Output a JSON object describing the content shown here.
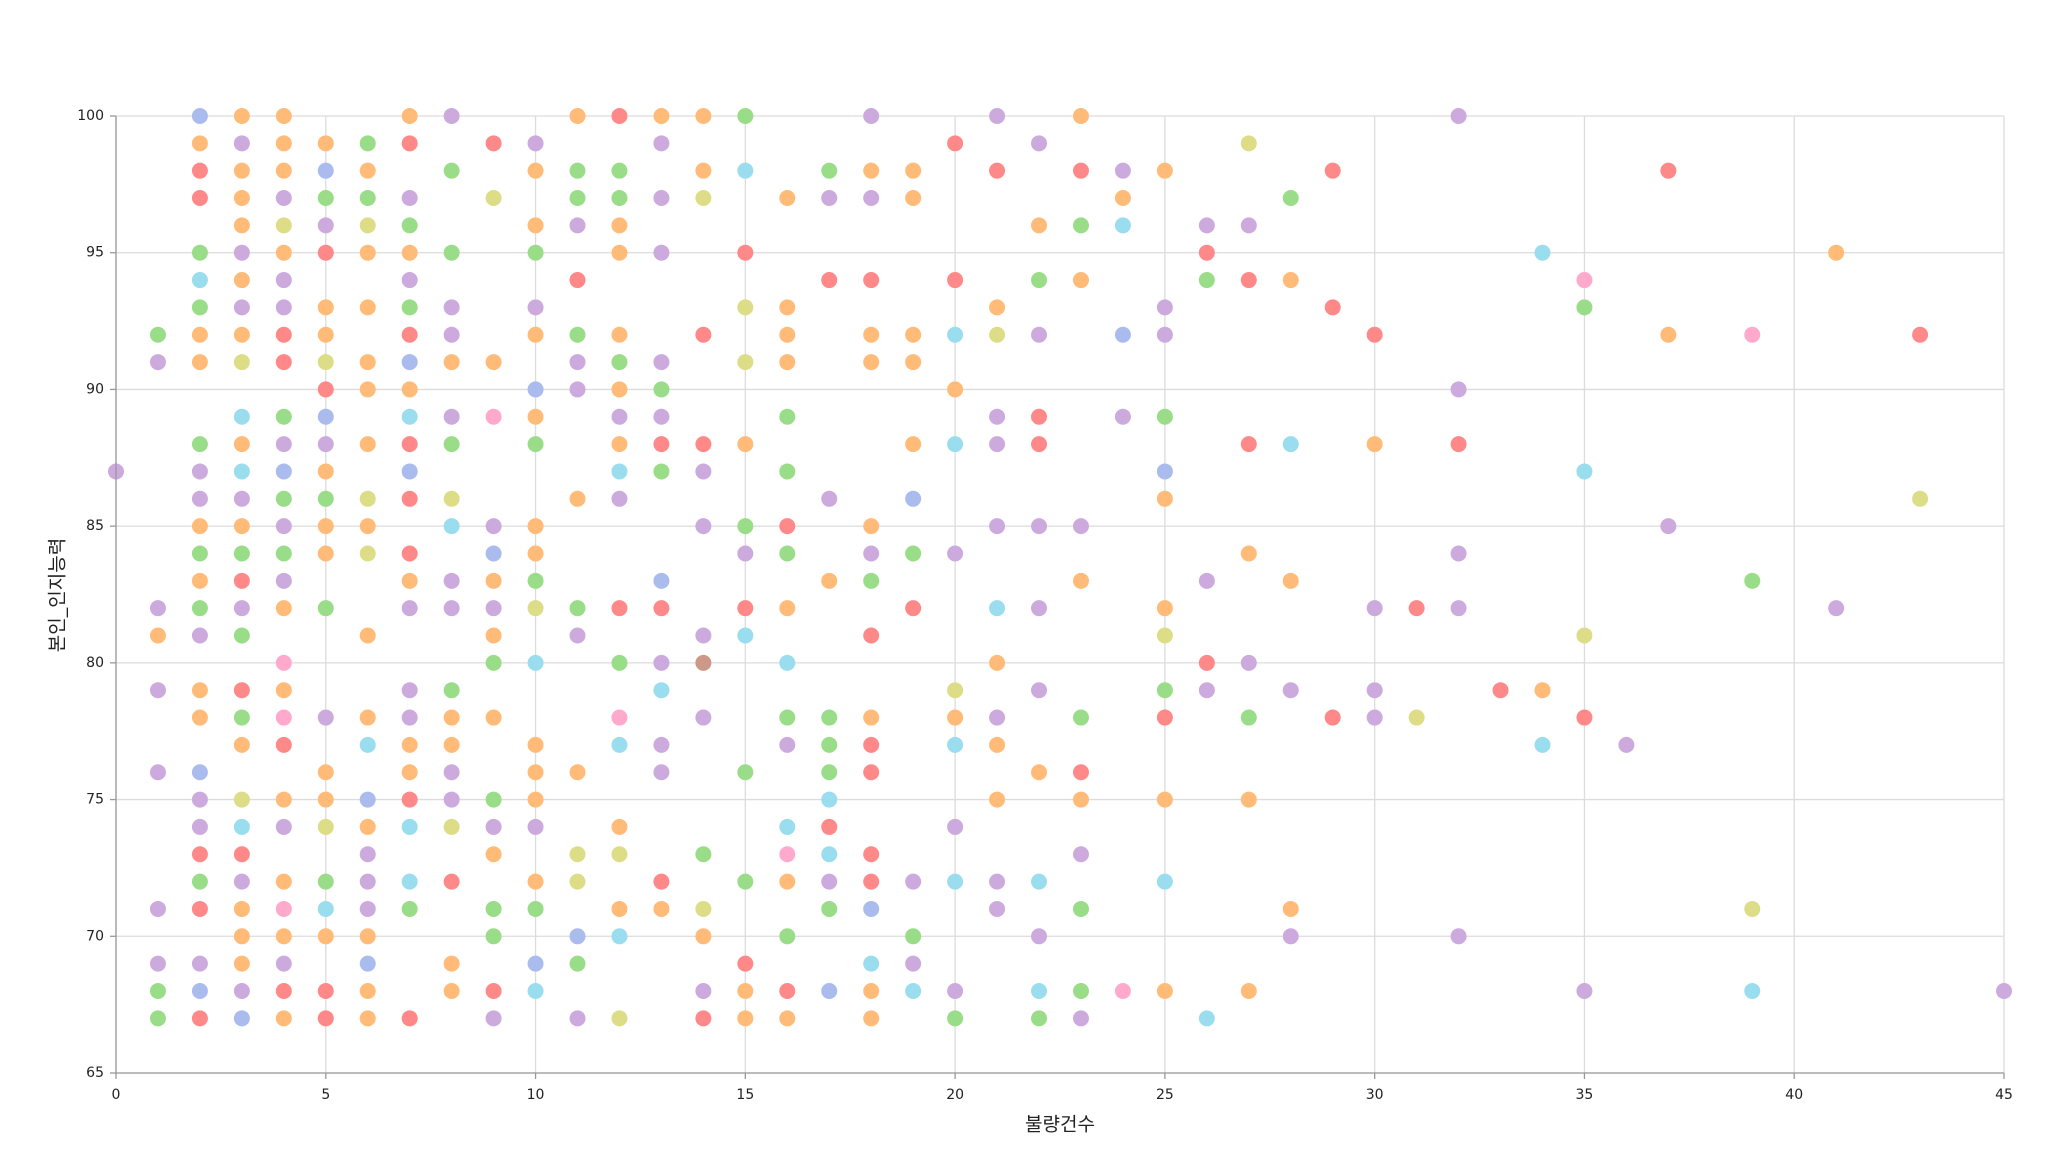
{
  "chart_data": {
    "type": "scatter",
    "x_label": "불량건수",
    "y_label": "본인_인지능력",
    "xlim": [
      0,
      45
    ],
    "xticks": [
      0,
      5,
      10,
      15,
      20,
      25,
      30,
      35,
      40,
      45
    ],
    "ylim": [
      65,
      100
    ],
    "yticks": [
      65,
      70,
      75,
      80,
      85,
      90,
      95,
      100
    ],
    "grid": true,
    "x": [
      0,
      1,
      1,
      1,
      1,
      1,
      1,
      1,
      1,
      1,
      1,
      2,
      2,
      2,
      2,
      2,
      2,
      2,
      2,
      2,
      2,
      2,
      2,
      2,
      2,
      2,
      2,
      2,
      2,
      2,
      2,
      2,
      2,
      2,
      2,
      2,
      2,
      2,
      2,
      3,
      3,
      3,
      3,
      3,
      3,
      3,
      3,
      3,
      3,
      3,
      3,
      3,
      3,
      3,
      3,
      3,
      3,
      3,
      3,
      3,
      3,
      3,
      3,
      3,
      3,
      3,
      3,
      3,
      3,
      3,
      4,
      4,
      4,
      4,
      4,
      4,
      4,
      4,
      4,
      4,
      4,
      4,
      4,
      4,
      4,
      4,
      4,
      4,
      4,
      4,
      4,
      4,
      4,
      4,
      4,
      4,
      4,
      4,
      4,
      4,
      5,
      5,
      5,
      5,
      5,
      5,
      5,
      5,
      5,
      5,
      5,
      5,
      5,
      5,
      5,
      5,
      5,
      5,
      5,
      5,
      5,
      5,
      5,
      5,
      5,
      6,
      6,
      6,
      6,
      6,
      6,
      6,
      6,
      6,
      6,
      6,
      6,
      6,
      6,
      6,
      6,
      6,
      6,
      6,
      6,
      6,
      6,
      6,
      6,
      7,
      7,
      7,
      7,
      7,
      7,
      7,
      7,
      7,
      7,
      7,
      7,
      7,
      7,
      7,
      7,
      7,
      7,
      7,
      7,
      7,
      7,
      7,
      7,
      7,
      7,
      8,
      8,
      8,
      8,
      8,
      8,
      8,
      8,
      8,
      8,
      8,
      8,
      8,
      8,
      8,
      8,
      8,
      8,
      8,
      8,
      8,
      9,
      9,
      9,
      9,
      9,
      9,
      9,
      9,
      9,
      9,
      9,
      9,
      9,
      9,
      9,
      9,
      9,
      9,
      10,
      10,
      10,
      10,
      10,
      10,
      10,
      10,
      10,
      10,
      10,
      10,
      10,
      10,
      10,
      10,
      10,
      10,
      10,
      10,
      10,
      10,
      11,
      11,
      11,
      11,
      11,
      11,
      11,
      11,
      11,
      11,
      11,
      11,
      11,
      11,
      11,
      11,
      11,
      12,
      12,
      12,
      12,
      12,
      12,
      12,
      12,
      12,
      12,
      12,
      12,
      12,
      12,
      12,
      12,
      12,
      12,
      12,
      12,
      12,
      13,
      13,
      13,
      13,
      13,
      13,
      13,
      13,
      13,
      13,
      13,
      13,
      13,
      13,
      13,
      13,
      13,
      14,
      14,
      14,
      14,
      14,
      14,
      14,
      14,
      14,
      14,
      14,
      14,
      14,
      14,
      14,
      15,
      15,
      15,
      15,
      15,
      15,
      15,
      15,
      15,
      15,
      15,
      15,
      15,
      15,
      15,
      16,
      16,
      16,
      16,
      16,
      16,
      16,
      16,
      16,
      16,
      16,
      16,
      16,
      16,
      16,
      16,
      16,
      16,
      17,
      17,
      17,
      17,
      17,
      17,
      17,
      17,
      17,
      17,
      17,
      17,
      17,
      17,
      18,
      18,
      18,
      18,
      18,
      18,
      18,
      18,
      18,
      18,
      18,
      18,
      18,
      18,
      18,
      18,
      18,
      18,
      18,
      19,
      19,
      19,
      19,
      19,
      19,
      19,
      19,
      19,
      19,
      19,
      19,
      20,
      20,
      20,
      20,
      20,
      20,
      20,
      20,
      20,
      20,
      20,
      20,
      20,
      21,
      21,
      21,
      21,
      21,
      21,
      21,
      21,
      21,
      21,
      21,
      21,
      21,
      21,
      22,
      22,
      22,
      22,
      22,
      22,
      22,
      22,
      22,
      22,
      22,
      22,
      22,
      22,
      23,
      23,
      23,
      23,
      23,
      23,
      23,
      23,
      23,
      23,
      23,
      23,
      23,
      24,
      24,
      24,
      24,
      24,
      24,
      25,
      25,
      25,
      25,
      25,
      25,
      25,
      25,
      25,
      25,
      25,
      25,
      25,
      26,
      26,
      26,
      26,
      26,
      26,
      26,
      27,
      27,
      27,
      27,
      27,
      27,
      27,
      27,
      27,
      28,
      28,
      28,
      28,
      28,
      28,
      28,
      29,
      29,
      29,
      30,
      30,
      30,
      30,
      30,
      31,
      31,
      32,
      32,
      32,
      32,
      32,
      32,
      33,
      34,
      34,
      34,
      35,
      35,
      35,
      35,
      35,
      35,
      36,
      37,
      37,
      37,
      39,
      39,
      39,
      39,
      41,
      41,
      43,
      43,
      45
    ],
    "values": [
      87,
      92,
      91,
      82,
      81,
      79,
      76,
      71,
      69,
      68,
      67,
      100,
      99,
      98,
      97,
      95,
      94,
      93,
      92,
      91,
      88,
      87,
      86,
      85,
      84,
      83,
      82,
      81,
      79,
      78,
      76,
      75,
      74,
      73,
      72,
      71,
      69,
      68,
      67,
      100,
      99,
      98,
      97,
      96,
      95,
      94,
      93,
      92,
      91,
      89,
      88,
      87,
      86,
      85,
      84,
      83,
      82,
      81,
      79,
      78,
      77,
      75,
      74,
      73,
      72,
      71,
      70,
      69,
      68,
      67,
      100,
      99,
      98,
      97,
      96,
      95,
      94,
      93,
      92,
      91,
      89,
      88,
      87,
      86,
      85,
      84,
      83,
      82,
      80,
      79,
      78,
      77,
      75,
      74,
      72,
      71,
      70,
      69,
      68,
      67,
      99,
      98,
      97,
      96,
      95,
      93,
      92,
      91,
      90,
      89,
      88,
      87,
      86,
      85,
      84,
      82,
      78,
      76,
      75,
      74,
      72,
      71,
      70,
      68,
      67,
      99,
      98,
      97,
      96,
      95,
      93,
      91,
      90,
      88,
      86,
      85,
      84,
      81,
      78,
      77,
      75,
      74,
      73,
      72,
      71,
      70,
      69,
      68,
      67,
      100,
      99,
      97,
      96,
      95,
      94,
      93,
      92,
      91,
      90,
      89,
      88,
      87,
      86,
      84,
      83,
      82,
      79,
      78,
      77,
      76,
      75,
      74,
      72,
      71,
      67,
      100,
      98,
      95,
      93,
      92,
      91,
      89,
      88,
      86,
      85,
      83,
      82,
      79,
      78,
      77,
      76,
      75,
      74,
      72,
      69,
      68,
      99,
      97,
      91,
      89,
      85,
      84,
      83,
      82,
      81,
      80,
      78,
      75,
      74,
      73,
      71,
      70,
      68,
      67,
      99,
      98,
      96,
      95,
      93,
      92,
      90,
      89,
      88,
      85,
      84,
      83,
      82,
      80,
      77,
      76,
      75,
      74,
      72,
      71,
      69,
      68,
      100,
      98,
      97,
      96,
      94,
      92,
      91,
      90,
      86,
      82,
      81,
      76,
      73,
      72,
      70,
      69,
      67,
      100,
      98,
      97,
      96,
      95,
      92,
      91,
      90,
      89,
      88,
      87,
      86,
      82,
      80,
      78,
      77,
      74,
      73,
      71,
      70,
      67,
      100,
      99,
      97,
      95,
      91,
      90,
      89,
      88,
      87,
      83,
      82,
      80,
      79,
      77,
      76,
      72,
      71,
      100,
      98,
      97,
      92,
      88,
      87,
      85,
      81,
      80,
      78,
      73,
      71,
      70,
      68,
      67,
      100,
      98,
      95,
      93,
      91,
      88,
      85,
      84,
      82,
      81,
      76,
      72,
      69,
      68,
      67,
      97,
      93,
      92,
      91,
      89,
      87,
      85,
      84,
      82,
      80,
      78,
      77,
      74,
      73,
      72,
      70,
      68,
      67,
      98,
      97,
      94,
      86,
      83,
      78,
      77,
      76,
      75,
      74,
      73,
      72,
      71,
      68,
      100,
      98,
      97,
      94,
      92,
      91,
      85,
      84,
      83,
      81,
      78,
      77,
      76,
      73,
      72,
      71,
      69,
      68,
      67,
      98,
      97,
      92,
      91,
      88,
      86,
      84,
      82,
      72,
      70,
      69,
      68,
      99,
      94,
      92,
      90,
      88,
      84,
      79,
      78,
      77,
      74,
      72,
      68,
      67,
      100,
      98,
      93,
      92,
      89,
      88,
      85,
      82,
      80,
      78,
      77,
      75,
      72,
      71,
      99,
      96,
      94,
      92,
      89,
      88,
      85,
      82,
      79,
      76,
      72,
      70,
      68,
      67,
      100,
      98,
      96,
      94,
      85,
      83,
      78,
      76,
      75,
      73,
      71,
      68,
      67,
      98,
      97,
      96,
      92,
      89,
      68,
      98,
      93,
      92,
      89,
      87,
      86,
      82,
      81,
      79,
      78,
      75,
      72,
      68,
      96,
      95,
      94,
      83,
      80,
      79,
      67,
      99,
      96,
      94,
      88,
      84,
      80,
      78,
      75,
      68,
      97,
      94,
      88,
      83,
      79,
      71,
      70,
      98,
      93,
      78,
      92,
      88,
      82,
      79,
      78,
      82,
      78,
      100,
      90,
      88,
      84,
      82,
      70,
      79,
      95,
      79,
      77,
      94,
      93,
      87,
      81,
      78,
      68,
      77,
      98,
      92,
      85,
      92,
      83,
      71,
      68,
      95,
      82,
      92,
      86,
      68
    ],
    "colors": [
      "#cad",
      "#9d8",
      "#cad",
      "#cad",
      "#fb7",
      "#cad",
      "#cad",
      "#cad",
      "#cad",
      "#9d8",
      "#9d8",
      "#abe",
      "#fb7",
      "#f88",
      "#f88",
      "#9d8",
      "#9de",
      "#9d8",
      "#fb7",
      "#fb7",
      "#9d8",
      "#cad",
      "#cad",
      "#fb7",
      "#9d8",
      "#fb7",
      "#9d8",
      "#cad",
      "#fb7",
      "#fb7",
      "#abe",
      "#cad",
      "#cad",
      "#f88",
      "#9d8",
      "#f88",
      "#cad",
      "#abe",
      "#f88",
      "#fb7",
      "#cad",
      "#fb7",
      "#fb7",
      "#fb7",
      "#cad",
      "#fb7",
      "#cad",
      "#fb7",
      "#dd8",
      "#9de",
      "#fb7",
      "#9de",
      "#cad",
      "#fb7",
      "#9d8",
      "#f88",
      "#cad",
      "#9d8",
      "#f88",
      "#9d8",
      "#fb7",
      "#dd8",
      "#9de",
      "#f88",
      "#cad",
      "#fb7",
      "#fb7",
      "#fb7",
      "#cad",
      "#abe",
      "#fb7",
      "#fb7",
      "#fb7",
      "#cad",
      "#dd8",
      "#fb7",
      "#cad",
      "#cad",
      "#f88",
      "#f88",
      "#9d8",
      "#cad",
      "#abe",
      "#9d8",
      "#cad",
      "#9d8",
      "#cad",
      "#fb7",
      "#fac",
      "#fb7",
      "#fac",
      "#f88",
      "#fb7",
      "#cad",
      "#fb7",
      "#fac",
      "#fb7",
      "#cad",
      "#f88",
      "#fb7",
      "#fb7",
      "#abe",
      "#9d8",
      "#cad",
      "#f88",
      "#fb7",
      "#fb7",
      "#dd8",
      "#f88",
      "#abe",
      "#cad",
      "#fb7",
      "#9d8",
      "#fb7",
      "#fb7",
      "#9d8",
      "#cad",
      "#fb7",
      "#fb7",
      "#dd8",
      "#9d8",
      "#9de",
      "#fb7",
      "#f88",
      "#f88",
      "#9d8",
      "#fb7",
      "#9d8",
      "#dd8",
      "#fb7",
      "#fb7",
      "#fb7",
      "#fb7",
      "#fb7",
      "#dd8",
      "#fb7",
      "#dd8",
      "#fb7",
      "#fb7",
      "#9de",
      "#abe",
      "#fb7",
      "#cad",
      "#cad",
      "#cad",
      "#fb7",
      "#abe",
      "#fb7",
      "#fb7",
      "#fb7",
      "#f88",
      "#cad",
      "#9d8",
      "#fb7",
      "#cad",
      "#9d8",
      "#f88",
      "#abe",
      "#fb7",
      "#9de",
      "#f88",
      "#abe",
      "#f88",
      "#f88",
      "#fb7",
      "#cad",
      "#cad",
      "#cad",
      "#fb7",
      "#fb7",
      "#f88",
      "#9de",
      "#9de",
      "#9d8",
      "#f88",
      "#cad",
      "#9d8",
      "#9d8",
      "#cad",
      "#cad",
      "#fb7",
      "#cad",
      "#9d8",
      "#dd8",
      "#9de",
      "#cad",
      "#cad",
      "#9d8",
      "#fb7",
      "#fb7",
      "#cad",
      "#cad",
      "#dd8",
      "#f88",
      "#fb7",
      "#fb7",
      "#f88",
      "#dd8",
      "#fb7",
      "#fac",
      "#cad",
      "#abe",
      "#fb7",
      "#cad",
      "#fb7",
      "#9d8",
      "#fb7",
      "#9d8",
      "#cad",
      "#fb7",
      "#9d8",
      "#9d8",
      "#f88",
      "#cad",
      "#cad",
      "#fb7",
      "#fb7",
      "#9d8",
      "#cad",
      "#fb7",
      "#abe",
      "#fb7",
      "#9d8",
      "#fb7",
      "#fb7",
      "#9d8",
      "#dd8",
      "#9de",
      "#fb7",
      "#fb7",
      "#fb7",
      "#cad",
      "#fb7",
      "#9d8",
      "#abe",
      "#9de",
      "#fb7",
      "#9d8",
      "#9d8",
      "#cad",
      "#f88",
      "#9d8",
      "#cad",
      "#cad",
      "#fb7",
      "#9d8",
      "#cad",
      "#fb7",
      "#dd8",
      "#dd8",
      "#abe",
      "#9d8",
      "#cad",
      "#f88",
      "#9d8",
      "#9d8",
      "#fb7",
      "#fb7",
      "#fb7",
      "#9d8",
      "#fb7",
      "#cad",
      "#fb7",
      "#9de",
      "#cad",
      "#f88",
      "#9d8",
      "#fac",
      "#9de",
      "#fb7",
      "#dd8",
      "#fb7",
      "#9de",
      "#dd8",
      "#fb7",
      "#cad",
      "#cad",
      "#cad",
      "#cad",
      "#9d8",
      "#cad",
      "#f88",
      "#9d8",
      "#abe",
      "#f88",
      "#cad",
      "#9de",
      "#cad",
      "#cad",
      "#f88",
      "#fb7",
      "#fb7",
      "#fb7",
      "#dd8",
      "#f88",
      "#f88",
      "#cad",
      "#cad",
      "#cad",
      "#c98",
      "#cad",
      "#9d8",
      "#dd8",
      "#fb7",
      "#cad",
      "#f88",
      "#9d8",
      "#9de",
      "#f88",
      "#dd8",
      "#dd8",
      "#fb7",
      "#9d8",
      "#cad",
      "#f88",
      "#9de",
      "#9d8",
      "#9d8",
      "#f88",
      "#fb7",
      "#fb7",
      "#fb7",
      "#fb7",
      "#fb7",
      "#fb7",
      "#9d8",
      "#9d8",
      "#f88",
      "#9d8",
      "#fb7",
      "#9de",
      "#9d8",
      "#cad",
      "#9de",
      "#fac",
      "#fb7",
      "#9d8",
      "#f88",
      "#fb7",
      "#9d8",
      "#cad",
      "#f88",
      "#cad",
      "#fb7",
      "#9d8",
      "#9d8",
      "#9d8",
      "#9de",
      "#f88",
      "#9de",
      "#cad",
      "#9d8",
      "#abe",
      "#cad",
      "#fb7",
      "#cad",
      "#f88",
      "#fb7",
      "#fb7",
      "#fb7",
      "#cad",
      "#9d8",
      "#f88",
      "#fb7",
      "#f88",
      "#f88",
      "#f88",
      "#f88",
      "#abe",
      "#9de",
      "#fb7",
      "#fb7",
      "#fb7",
      "#fb7",
      "#fb7",
      "#fb7",
      "#fb7",
      "#abe",
      "#9d8",
      "#f88",
      "#cad",
      "#9d8",
      "#cad",
      "#9de",
      "#f88",
      "#f88",
      "#9de",
      "#fb7",
      "#9de",
      "#cad",
      "#dd8",
      "#fb7",
      "#9de",
      "#cad",
      "#9de",
      "#cad",
      "#9d8",
      "#cad",
      "#f88",
      "#fb7",
      "#dd8",
      "#cad",
      "#cad",
      "#cad",
      "#9de",
      "#fb7",
      "#cad",
      "#fb7",
      "#fb7",
      "#cad",
      "#cad",
      "#cad",
      "#fb7",
      "#9d8",
      "#cad",
      "#f88",
      "#f88",
      "#cad",
      "#cad",
      "#cad",
      "#fb7",
      "#9de",
      "#cad",
      "#9de",
      "#9d8",
      "#fb7",
      "#f88",
      "#9d8",
      "#fb7",
      "#cad",
      "#fb7",
      "#9d8",
      "#f88",
      "#fb7",
      "#cad",
      "#9d8",
      "#9d8",
      "#cad",
      "#cad",
      "#fb7",
      "#9de",
      "#abe",
      "#cad",
      "#fac",
      "#fb7",
      "#cad",
      "#cad",
      "#9d8",
      "#abe",
      "#fb7",
      "#fb7",
      "#dd8",
      "#9d8",
      "#f88",
      "#fb7",
      "#9de",
      "#fb7",
      "#cad",
      "#f88",
      "#9d8",
      "#cad",
      "#f88",
      "#cad",
      "#9de",
      "#dd8",
      "#cad",
      "#f88",
      "#f88",
      "#fb7",
      "#cad",
      "#9d8",
      "#fb7",
      "#fb7",
      "#9d8",
      "#fb7",
      "#9de",
      "#fb7",
      "#cad",
      "#fb7",
      "#cad",
      "#f88",
      "#f88",
      "#f88",
      "#f88",
      "#fb7",
      "#cad",
      "#cad",
      "#cad",
      "#f88",
      "#dd8",
      "#cad",
      "#cad",
      "#f88",
      "#cad",
      "#cad",
      "#cad",
      "#f88",
      "#9de",
      "#fb7",
      "#9de",
      "#fac",
      "#9d8",
      "#9de",
      "#dd8",
      "#f88",
      "#cad",
      "#cad",
      "#f88",
      "#fb7",
      "#cad",
      "#fac",
      "#9d8",
      "#dd8",
      "#9de",
      "#fb7",
      "#cad",
      "#f88",
      "#dd8",
      "#cad"
    ]
  }
}
